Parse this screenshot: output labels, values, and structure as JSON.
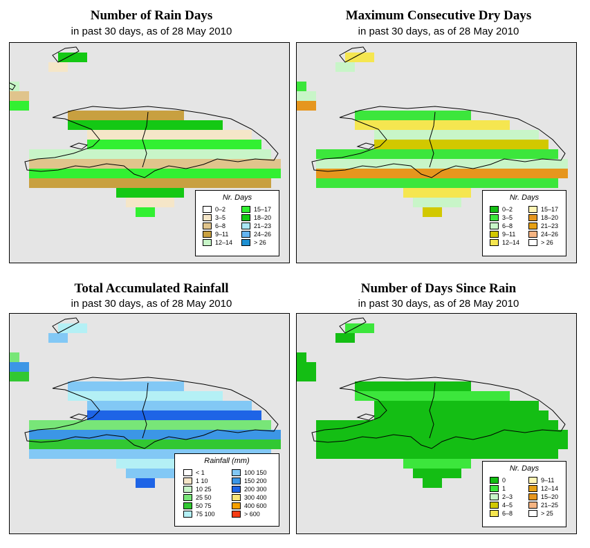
{
  "panels": [
    {
      "id": "rain-days",
      "title": "Number of Rain Days",
      "subtitle": "in past 30 days, as of  28 May 2010",
      "legend": {
        "title": "Nr. Days",
        "items": [
          {
            "label": "0–2",
            "color": "#ffffff"
          },
          {
            "label": "3–5",
            "color": "#f5e6c8"
          },
          {
            "label": "6–8",
            "color": "#e0c48c"
          },
          {
            "label": "9–11",
            "color": "#c8a040"
          },
          {
            "label": "12–14",
            "color": "#c8f5c8"
          },
          {
            "label": "15–17",
            "color": "#32f032"
          },
          {
            "label": "18–20",
            "color": "#14c814"
          },
          {
            "label": "21–23",
            "color": "#aae6f5"
          },
          {
            "label": "24–26",
            "color": "#64b4f0"
          },
          {
            "label": "> 26",
            "color": "#1e90d2"
          }
        ]
      }
    },
    {
      "id": "dry-days",
      "title": "Maximum Consecutive Dry Days",
      "subtitle": "in past 30 days, as of  28 May 2010",
      "legend": {
        "title": "Nr. Days",
        "items": [
          {
            "label": "0–2",
            "color": "#14be14"
          },
          {
            "label": "3–5",
            "color": "#3ce63c"
          },
          {
            "label": "6–8",
            "color": "#c8f5c8"
          },
          {
            "label": "9–11",
            "color": "#d2c800"
          },
          {
            "label": "12–14",
            "color": "#f5e650"
          },
          {
            "label": "15–17",
            "color": "#fff5b4"
          },
          {
            "label": "18–20",
            "color": "#e6961e"
          },
          {
            "label": "21–23",
            "color": "#e6a014"
          },
          {
            "label": "24–26",
            "color": "#f5b482"
          },
          {
            "label": "> 26",
            "color": "#ffffff"
          }
        ]
      }
    },
    {
      "id": "rainfall",
      "title": "Total Accumulated Rainfall",
      "subtitle": "in past 30 days, as of  28 May 2010",
      "legend": {
        "title": "Rainfall (mm)",
        "items": [
          {
            "label": "< 1",
            "color": "#ffffff"
          },
          {
            "label": "1    10",
            "color": "#f5e6c8"
          },
          {
            "label": "10    25",
            "color": "#c8f5c8"
          },
          {
            "label": "25    50",
            "color": "#78e678"
          },
          {
            "label": "50    75",
            "color": "#32c832"
          },
          {
            "label": "75   100",
            "color": "#b4f0f5"
          },
          {
            "label": "100  150",
            "color": "#82c8f5"
          },
          {
            "label": "150  200",
            "color": "#3c96e6"
          },
          {
            "label": "200  300",
            "color": "#1e64e6"
          },
          {
            "label": "300  400",
            "color": "#fae678"
          },
          {
            "label": "400  600",
            "color": "#f5a000"
          },
          {
            "label": "> 600",
            "color": "#f53c14"
          }
        ]
      }
    },
    {
      "id": "since-rain",
      "title": "Number of Days Since Rain",
      "subtitle": "in past 30 days, as of  28 May 2010",
      "legend": {
        "title": "Nr. Days",
        "items": [
          {
            "label": "0",
            "color": "#14be14"
          },
          {
            "label": "1",
            "color": "#3ce63c"
          },
          {
            "label": "2–3",
            "color": "#c8f5c8"
          },
          {
            "label": "4–5",
            "color": "#d2c800"
          },
          {
            "label": "6–8",
            "color": "#f5e650"
          },
          {
            "label": "9–11",
            "color": "#fff5b4"
          },
          {
            "label": "12–14",
            "color": "#e6a014"
          },
          {
            "label": "15–20",
            "color": "#e6961e"
          },
          {
            "label": "21–25",
            "color": "#f5b482"
          },
          {
            "label": "> 25",
            "color": "#ffffff"
          }
        ]
      }
    }
  ]
}
